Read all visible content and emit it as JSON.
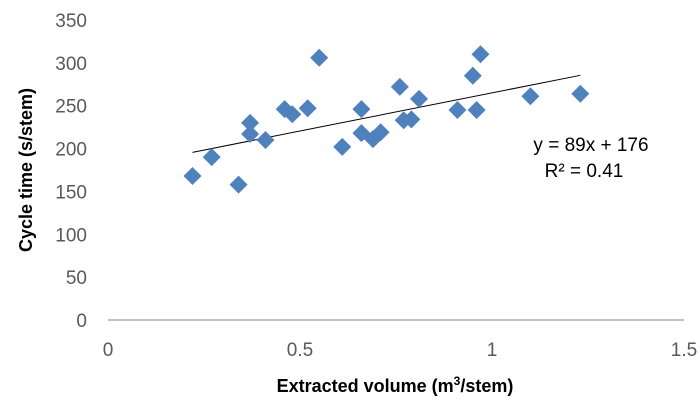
{
  "chart_data": {
    "type": "scatter",
    "xlabel_main": "Extracted volume (m",
    "xlabel_sup": "3",
    "xlabel_end": "/stem)",
    "ylabel": "Cycle time (s/stem)",
    "xlim": [
      0,
      1.5
    ],
    "ylim": [
      0,
      350
    ],
    "x_ticks": [
      "0",
      "0.5",
      "1",
      "1.5"
    ],
    "y_ticks": [
      "0",
      "50",
      "100",
      "150",
      "200",
      "250",
      "300",
      "350"
    ],
    "grid": false,
    "marker_color": "#4F81BD",
    "points": [
      {
        "x": 0.22,
        "y": 168
      },
      {
        "x": 0.27,
        "y": 190
      },
      {
        "x": 0.34,
        "y": 158
      },
      {
        "x": 0.37,
        "y": 230
      },
      {
        "x": 0.37,
        "y": 217
      },
      {
        "x": 0.41,
        "y": 210
      },
      {
        "x": 0.46,
        "y": 246
      },
      {
        "x": 0.48,
        "y": 240
      },
      {
        "x": 0.52,
        "y": 247
      },
      {
        "x": 0.55,
        "y": 306
      },
      {
        "x": 0.61,
        "y": 202
      },
      {
        "x": 0.66,
        "y": 246
      },
      {
        "x": 0.66,
        "y": 218
      },
      {
        "x": 0.69,
        "y": 211
      },
      {
        "x": 0.71,
        "y": 219
      },
      {
        "x": 0.76,
        "y": 272
      },
      {
        "x": 0.77,
        "y": 233
      },
      {
        "x": 0.79,
        "y": 234
      },
      {
        "x": 0.81,
        "y": 258
      },
      {
        "x": 0.91,
        "y": 245
      },
      {
        "x": 0.95,
        "y": 285
      },
      {
        "x": 0.96,
        "y": 245
      },
      {
        "x": 0.97,
        "y": 310
      },
      {
        "x": 1.1,
        "y": 261
      },
      {
        "x": 1.23,
        "y": 264
      }
    ],
    "trendline": {
      "slope": 89,
      "intercept": 176,
      "x_range": [
        0.22,
        1.23
      ],
      "equation_label": "y = 89x + 176",
      "r2_label": "R² = 0.41"
    }
  }
}
